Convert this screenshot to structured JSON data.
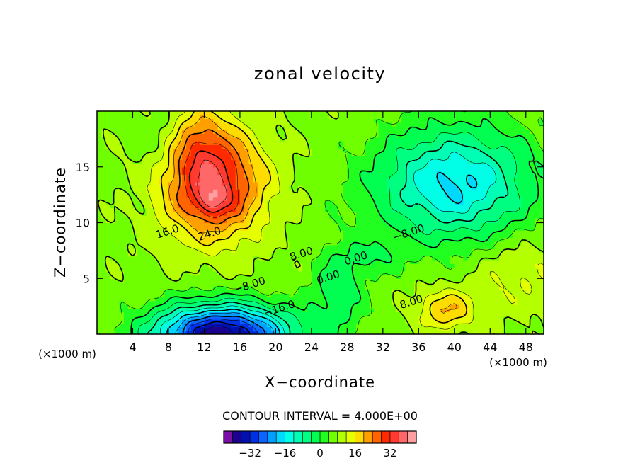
{
  "chart_data": {
    "type": "heatmap",
    "title": "zonal velocity",
    "xlabel": "X−coordinate",
    "ylabel": "Z−coordinate",
    "x_unit": "(×1000 m)",
    "y_unit": "(×1000 m)",
    "xlim": [
      0,
      50
    ],
    "ylim": [
      0,
      20
    ],
    "x_ticks": [
      4,
      8,
      12,
      16,
      20,
      24,
      28,
      32,
      36,
      40,
      44,
      48
    ],
    "y_ticks": [
      5,
      10,
      15
    ],
    "contour_interval_text": "CONTOUR INTERVAL = 4.000E+00",
    "contour_interval": 4,
    "color_range": [
      -40,
      40
    ],
    "colorbar": {
      "colors": [
        "#7a0ea6",
        "#1c008e",
        "#000fb0",
        "#0030e6",
        "#0a64ff",
        "#00a0ff",
        "#00d8ff",
        "#00ffe6",
        "#00ffb4",
        "#00ff80",
        "#00ff50",
        "#20ff20",
        "#70ff00",
        "#b4ff00",
        "#e6ff00",
        "#ffdc00",
        "#ffa000",
        "#ff6400",
        "#ff2a00",
        "#ff3a30",
        "#ff6868",
        "#ffa0a0"
      ],
      "tick_labels": [
        "−32",
        "−16",
        "0",
        "16",
        "32"
      ],
      "tick_values": [
        -32,
        -16,
        0,
        16,
        32
      ]
    },
    "features": [
      {
        "kind": "max",
        "x": 13,
        "z": 12.0,
        "value": 36
      },
      {
        "kind": "jet",
        "x": 12,
        "z": 16.5,
        "value": 28
      },
      {
        "kind": "min",
        "x": 14,
        "z": 0.5,
        "value": -36
      },
      {
        "kind": "min",
        "x": 40,
        "z": 13.5,
        "value": -16
      },
      {
        "kind": "max",
        "x": 39,
        "z": 2.0,
        "value": 20
      }
    ],
    "contour_labels": [
      {
        "text": "16.0",
        "x": 8.0,
        "z": 8.9
      },
      {
        "text": "24.0",
        "x": 12.7,
        "z": 8.7
      },
      {
        "text": "8.00",
        "x": 23.0,
        "z": 6.9
      },
      {
        "text": "0.00",
        "x": 26.0,
        "z": 4.8
      },
      {
        "text": "0.00",
        "x": 29.1,
        "z": 6.5
      },
      {
        "text": "−8.00",
        "x": 17.2,
        "z": 4.1
      },
      {
        "text": "−16.0",
        "x": 20.5,
        "z": 2.0
      },
      {
        "text": "−8.00",
        "x": 35.0,
        "z": 8.8
      },
      {
        "text": "8.00",
        "x": 35.3,
        "z": 2.6
      }
    ]
  }
}
